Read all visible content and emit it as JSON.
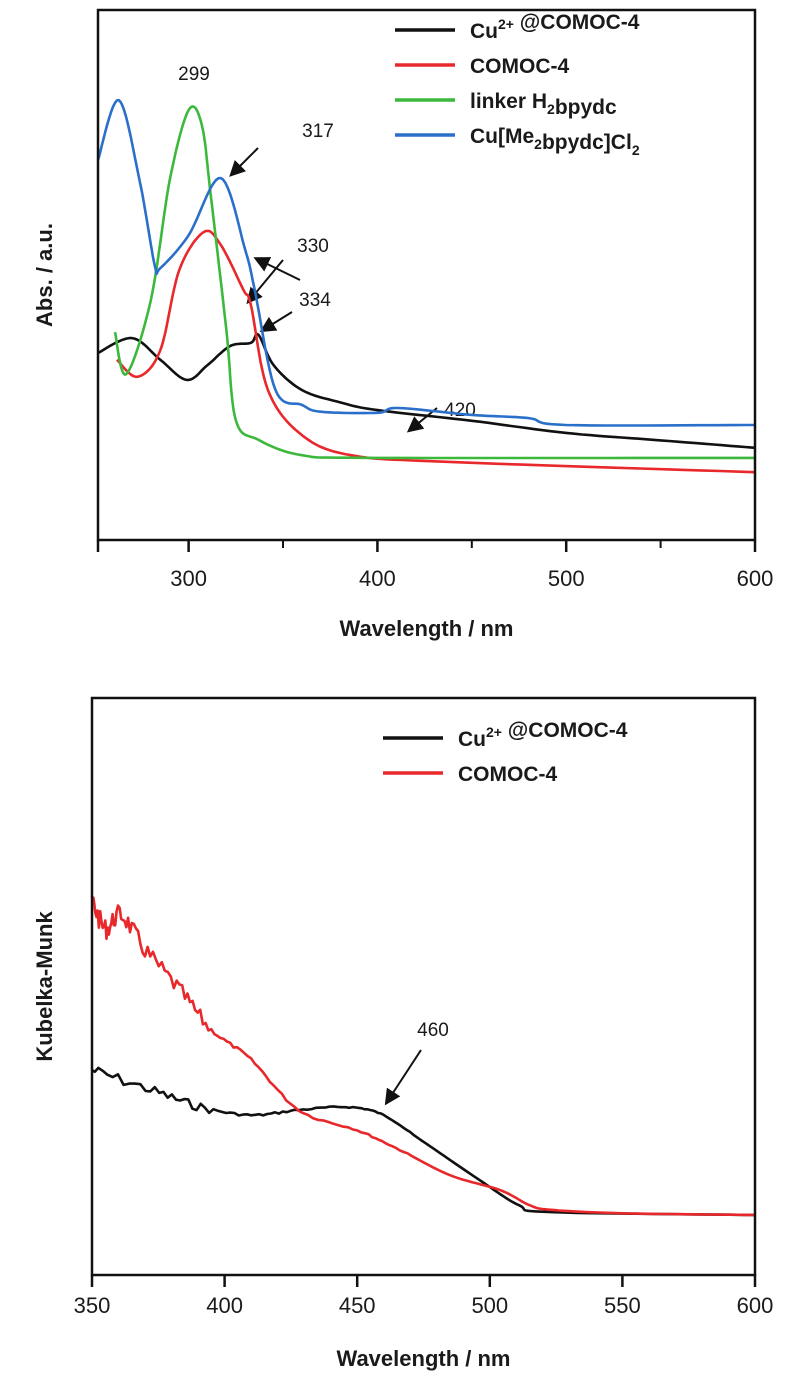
{
  "chart_data": [
    {
      "type": "line",
      "xlabel": "Wavelength / nm",
      "ylabel": "Abs. / a.u.",
      "xlim": [
        252,
        600
      ],
      "ylim": [
        0,
        1
      ],
      "xticks": [
        300,
        400,
        500,
        600
      ],
      "minor_xticks": [
        350,
        450,
        550
      ],
      "y_tick_labels": false,
      "grid": false,
      "legend_position": "top-right",
      "series": [
        {
          "name": "Cu²⁺ @COMOC-4",
          "name_parts": [
            "Cu",
            "2+",
            " @COMOC-4"
          ],
          "color": "#111111",
          "points": [
            [
              252,
              0.353
            ],
            [
              270,
              0.381
            ],
            [
              285,
              0.34
            ],
            [
              299,
              0.302
            ],
            [
              310,
              0.33
            ],
            [
              322,
              0.366
            ],
            [
              333,
              0.372
            ],
            [
              337,
              0.387
            ],
            [
              345,
              0.33
            ],
            [
              360,
              0.283
            ],
            [
              380,
              0.26
            ],
            [
              400,
              0.245
            ],
            [
              450,
              0.225
            ],
            [
              500,
              0.202
            ],
            [
              550,
              0.188
            ],
            [
              600,
              0.174
            ]
          ]
        },
        {
          "name": "COMOC-4",
          "name_parts": [
            "COMOC-4"
          ],
          "color": "#e8282b",
          "points": [
            [
              262,
              0.34
            ],
            [
              273,
              0.308
            ],
            [
              285,
              0.358
            ],
            [
              295,
              0.509
            ],
            [
              308,
              0.581
            ],
            [
              317,
              0.557
            ],
            [
              329,
              0.472
            ],
            [
              333,
              0.443
            ],
            [
              342,
              0.283
            ],
            [
              360,
              0.198
            ],
            [
              386,
              0.16
            ],
            [
              440,
              0.147
            ],
            [
              600,
              0.128
            ]
          ]
        },
        {
          "name": "linker H₂bpydc",
          "name_parts": [
            "linker H",
            "2",
            "bpydc"
          ],
          "color": "#3cb93c",
          "points": [
            [
              261,
              0.392
            ],
            [
              267,
              0.313
            ],
            [
              280,
              0.453
            ],
            [
              290,
              0.679
            ],
            [
              300,
              0.811
            ],
            [
              307,
              0.783
            ],
            [
              312,
              0.642
            ],
            [
              320,
              0.396
            ],
            [
              325,
              0.226
            ],
            [
              337,
              0.189
            ],
            [
              360,
              0.16
            ],
            [
              400,
              0.155
            ],
            [
              600,
              0.155
            ]
          ]
        },
        {
          "name": "Cu[Me₂bpydc]Cl₂",
          "name_parts": [
            "Cu[Me",
            "2",
            "bpydc]Cl",
            "2"
          ],
          "color": "#2a6fc9",
          "points": [
            [
              252,
              0.717
            ],
            [
              263,
              0.83
            ],
            [
              274,
              0.679
            ],
            [
              282,
              0.519
            ],
            [
              285,
              0.513
            ],
            [
              300,
              0.575
            ],
            [
              317,
              0.683
            ],
            [
              330,
              0.547
            ],
            [
              335,
              0.472
            ],
            [
              346,
              0.283
            ],
            [
              360,
              0.255
            ],
            [
              370,
              0.242
            ],
            [
              400,
              0.24
            ],
            [
              411,
              0.249
            ],
            [
              450,
              0.236
            ],
            [
              480,
              0.23
            ],
            [
              500,
              0.217
            ],
            [
              600,
              0.217
            ]
          ]
        }
      ],
      "annotations": [
        "299",
        "317",
        "330",
        "334",
        "420"
      ]
    },
    {
      "type": "line",
      "xlabel": "Wavelength / nm",
      "ylabel": "Kubelka-Munk",
      "xlim": [
        350,
        600
      ],
      "ylim": [
        0,
        1
      ],
      "xticks": [
        350,
        400,
        450,
        500,
        550,
        600
      ],
      "y_tick_labels": false,
      "grid": false,
      "legend_position": "top-right",
      "series": [
        {
          "name": "Cu²⁺ @COMOC-4",
          "name_parts": [
            "Cu",
            "2+",
            " @COMOC-4"
          ],
          "color": "#111111",
          "points": [
            [
              350,
              0.355
            ],
            [
              372,
              0.321
            ],
            [
              391,
              0.291
            ],
            [
              410,
              0.277
            ],
            [
              428,
              0.286
            ],
            [
              447,
              0.291
            ],
            [
              460,
              0.277
            ],
            [
              474,
              0.234
            ],
            [
              496,
              0.165
            ],
            [
              511,
              0.121
            ],
            [
              523,
              0.109
            ],
            [
              600,
              0.104
            ]
          ]
        },
        {
          "name": "COMOC-4",
          "name_parts": [
            "COMOC-4"
          ],
          "color": "#e8282b",
          "points": [
            [
              350,
              0.65
            ],
            [
              355,
              0.6
            ],
            [
              361,
              0.624
            ],
            [
              370,
              0.563
            ],
            [
              383,
              0.494
            ],
            [
              395,
              0.425
            ],
            [
              410,
              0.373
            ],
            [
              428,
              0.286
            ],
            [
              450,
              0.251
            ],
            [
              466,
              0.217
            ],
            [
              485,
              0.173
            ],
            [
              504,
              0.147
            ],
            [
              515,
              0.121
            ],
            [
              523,
              0.113
            ],
            [
              550,
              0.107
            ],
            [
              600,
              0.104
            ]
          ]
        }
      ],
      "annotations": [
        "460"
      ]
    }
  ]
}
